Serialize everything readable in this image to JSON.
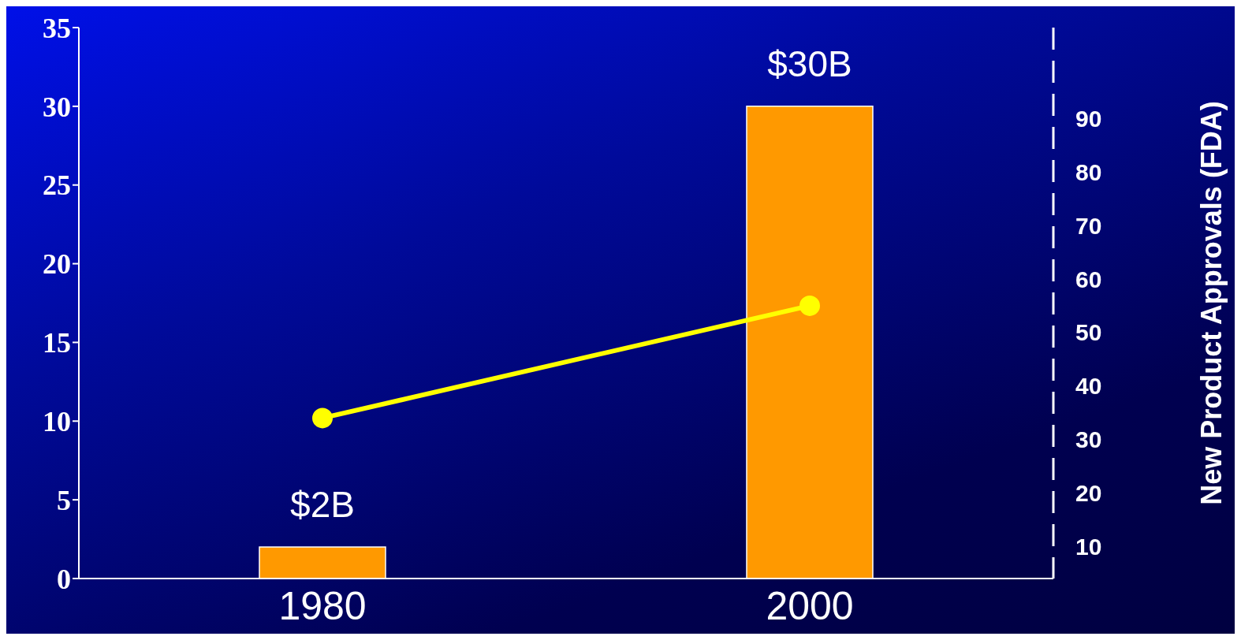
{
  "chart_data": {
    "type": "bar",
    "categories": [
      "1980",
      "2000"
    ],
    "series": [
      {
        "color": "#ff9900",
        "values": [
          2,
          30
        ],
        "value_labels": [
          "$2B",
          "$30B"
        ]
      },
      {
        "type": "line",
        "axis": "y2",
        "color": "#ffff00",
        "values": [
          34,
          55
        ],
        "marker": "circle"
      }
    ],
    "ylim": [
      0,
      35
    ],
    "yticks": [
      0,
      5,
      10,
      15,
      20,
      25,
      30,
      35
    ],
    "y2lim": [
      4,
      107
    ],
    "y2ticks": [
      10,
      20,
      30,
      40,
      50,
      60,
      70,
      80,
      90
    ],
    "y2label": "New Product Approvals (FDA)",
    "grid": false,
    "legend": false
  }
}
